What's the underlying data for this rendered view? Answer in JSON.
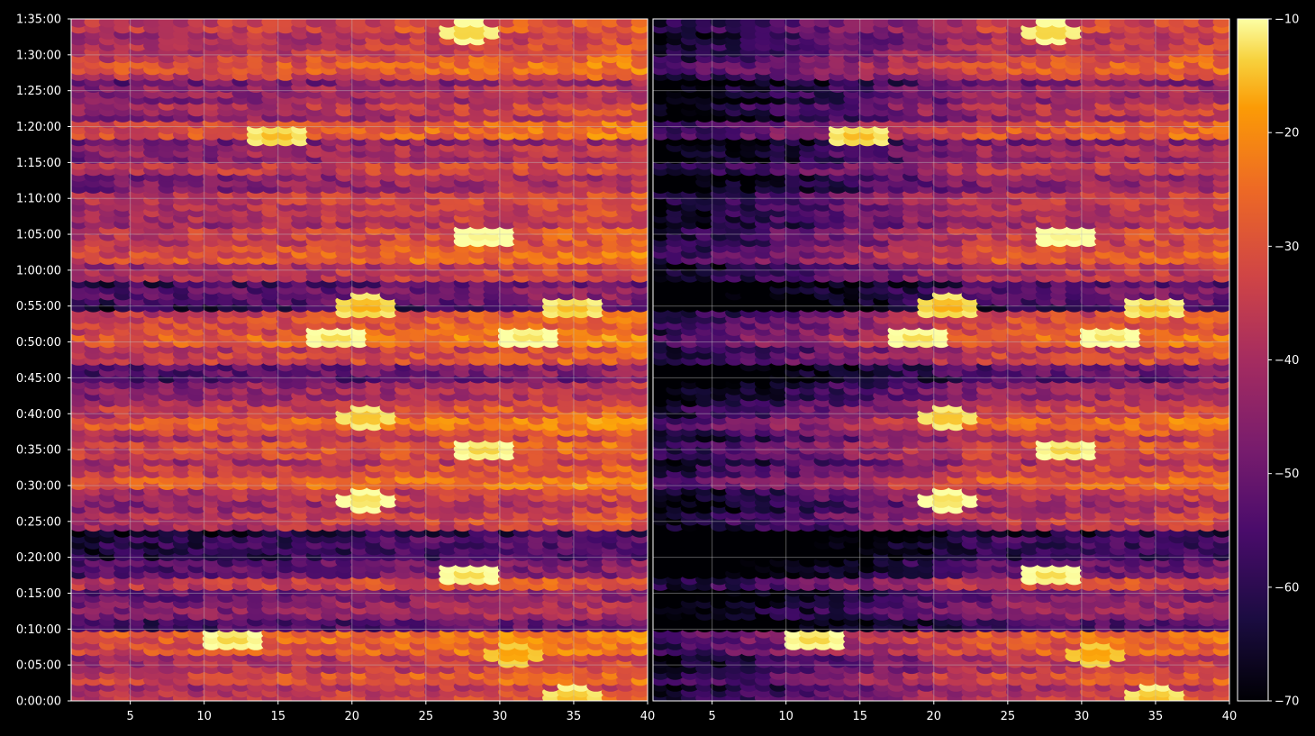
{
  "chart_data": {
    "type": "heatmap",
    "title": "",
    "xlabel": "",
    "ylabel": "",
    "grid": true,
    "background": "#000000",
    "grid_color": "#bfbfbf",
    "colormap": "inferno",
    "panels": [
      {
        "name": "",
        "x_range": [
          1,
          40
        ],
        "y_range": [
          0,
          5700
        ]
      },
      {
        "name": "",
        "x_range": [
          1,
          40
        ],
        "y_range": [
          0,
          5700
        ]
      }
    ],
    "x_ticks": [
      5,
      10,
      15,
      20,
      25,
      30,
      35,
      40
    ],
    "x_tick_labels": [
      "5",
      "10",
      "15",
      "20",
      "25",
      "30",
      "35",
      "40"
    ],
    "y_ticks_seconds": [
      0,
      300,
      600,
      900,
      1200,
      1500,
      1800,
      2100,
      2400,
      2700,
      3000,
      3300,
      3600,
      3900,
      4200,
      4500,
      4800,
      5100,
      5400,
      5700
    ],
    "y_tick_labels": [
      "0:00:00",
      "0:05:00",
      "0:10:00",
      "0:15:00",
      "0:20:00",
      "0:25:00",
      "0:30:00",
      "0:35:00",
      "0:40:00",
      "0:45:00",
      "0:50:00",
      "0:55:00",
      "1:00:00",
      "1:05:00",
      "1:10:00",
      "1:15:00",
      "1:20:00",
      "1:25:00",
      "1:30:00",
      "1:35:00"
    ],
    "colorbar": {
      "range": [
        -70,
        -10
      ],
      "ticks": [
        -10,
        -20,
        -30,
        -40,
        -50,
        -60,
        -70
      ],
      "tick_labels": [
        "−10",
        "−20",
        "−30",
        "−40",
        "−50",
        "−60",
        "−70"
      ]
    },
    "bands": [
      {
        "t": 50,
        "v": -38
      },
      {
        "t": 200,
        "v": -34
      },
      {
        "t": 320,
        "v": -40
      },
      {
        "t": 430,
        "v": -32
      },
      {
        "t": 530,
        "v": -30
      },
      {
        "t": 620,
        "v": -55
      },
      {
        "t": 770,
        "v": -46
      },
      {
        "t": 890,
        "v": -50
      },
      {
        "t": 990,
        "v": -36
      },
      {
        "t": 1110,
        "v": -52
      },
      {
        "t": 1320,
        "v": -58
      },
      {
        "t": 1530,
        "v": -38
      },
      {
        "t": 1740,
        "v": -40
      },
      {
        "t": 1830,
        "v": -30
      },
      {
        "t": 1920,
        "v": -36
      },
      {
        "t": 2110,
        "v": -34
      },
      {
        "t": 2340,
        "v": -30
      },
      {
        "t": 2420,
        "v": -36
      },
      {
        "t": 2590,
        "v": -44
      },
      {
        "t": 2770,
        "v": -52
      },
      {
        "t": 2880,
        "v": -36
      },
      {
        "t": 3020,
        "v": -30
      },
      {
        "t": 3180,
        "v": -34
      },
      {
        "t": 3410,
        "v": -52
      },
      {
        "t": 3590,
        "v": -40
      },
      {
        "t": 3730,
        "v": -32
      },
      {
        "t": 3900,
        "v": -36
      },
      {
        "t": 4060,
        "v": -40
      },
      {
        "t": 4200,
        "v": -38
      },
      {
        "t": 4340,
        "v": -46
      },
      {
        "t": 4470,
        "v": -38
      },
      {
        "t": 4600,
        "v": -44
      },
      {
        "t": 4780,
        "v": -32
      },
      {
        "t": 4970,
        "v": -40
      },
      {
        "t": 5090,
        "v": -44
      },
      {
        "t": 5310,
        "v": -32
      },
      {
        "t": 5460,
        "v": -38
      },
      {
        "t": 5560,
        "v": -40
      },
      {
        "t": 5620,
        "v": -36
      }
    ],
    "hotspots": [
      {
        "x": 29,
        "t": 3890,
        "v": -14
      },
      {
        "x": 32,
        "t": 3060,
        "v": -17
      },
      {
        "x": 12,
        "t": 530,
        "v": -19
      },
      {
        "x": 28,
        "t": 5600,
        "v": -20
      },
      {
        "x": 15,
        "t": 4730,
        "v": -22
      },
      {
        "x": 21,
        "t": 1690,
        "v": -18
      },
      {
        "x": 19,
        "t": 3040,
        "v": -18
      },
      {
        "x": 28,
        "t": 1060,
        "v": -18
      },
      {
        "x": 29,
        "t": 2110,
        "v": -19
      },
      {
        "x": 21,
        "t": 2380,
        "v": -22
      },
      {
        "x": 35,
        "t": 40,
        "v": -22
      },
      {
        "x": 35,
        "t": 3290,
        "v": -22
      },
      {
        "x": 21,
        "t": 3310,
        "v": -24
      },
      {
        "x": 31,
        "t": 400,
        "v": -26
      }
    ]
  }
}
